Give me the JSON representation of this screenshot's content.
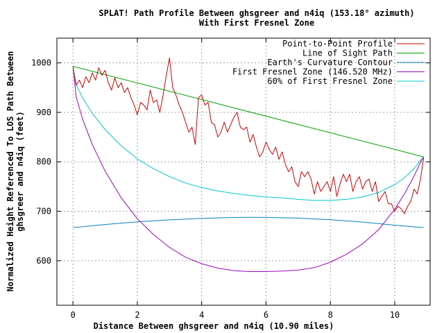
{
  "chart_data": {
    "type": "line",
    "title_lines": [
      "SPLAT! Path Profile Between ghsgreer and n4iq (153.18° azimuth)",
      "With First Fresnel Zone"
    ],
    "xlabel": "Distance Between ghsgreer and n4iq (10.90 miles)",
    "ylabel_lines": [
      "Normalized Height Referenced To LOS Path Between",
      "ghsgreer and n4iq (feet)"
    ],
    "xlim": [
      -0.5,
      11.1
    ],
    "ylim": [
      510,
      1050
    ],
    "x_ticks": [
      0,
      2,
      4,
      6,
      8,
      10
    ],
    "y_ticks": [
      600,
      700,
      800,
      900,
      1000
    ],
    "x_tick_labels": [
      "0",
      "2",
      "4",
      "6",
      "8",
      "10"
    ],
    "y_tick_labels": [
      "600",
      "700",
      "800",
      "900",
      "1000"
    ],
    "grid": true,
    "legend_position": "top-right",
    "series": [
      {
        "name": "Point-to-Point Profile",
        "color": "#cc0000",
        "x": [
          0.0,
          0.05,
          0.1,
          0.2,
          0.3,
          0.4,
          0.5,
          0.6,
          0.7,
          0.8,
          0.9,
          1.0,
          1.1,
          1.2,
          1.3,
          1.4,
          1.5,
          1.6,
          1.7,
          1.8,
          1.9,
          2.0,
          2.1,
          2.2,
          2.3,
          2.4,
          2.5,
          2.6,
          2.7,
          2.8,
          2.9,
          3.0,
          3.1,
          3.2,
          3.3,
          3.4,
          3.5,
          3.6,
          3.7,
          3.8,
          3.9,
          4.0,
          4.1,
          4.2,
          4.3,
          4.4,
          4.5,
          4.6,
          4.7,
          4.8,
          4.9,
          5.0,
          5.1,
          5.2,
          5.3,
          5.4,
          5.5,
          5.6,
          5.7,
          5.8,
          5.9,
          6.0,
          6.1,
          6.2,
          6.3,
          6.4,
          6.5,
          6.6,
          6.7,
          6.8,
          6.9,
          7.0,
          7.1,
          7.2,
          7.3,
          7.4,
          7.5,
          7.6,
          7.7,
          7.8,
          7.9,
          8.0,
          8.1,
          8.2,
          8.3,
          8.4,
          8.5,
          8.6,
          8.7,
          8.8,
          8.9,
          9.0,
          9.1,
          9.2,
          9.3,
          9.4,
          9.5,
          9.6,
          9.7,
          9.8,
          9.9,
          10.0,
          10.1,
          10.2,
          10.3,
          10.4,
          10.5,
          10.6,
          10.7,
          10.8,
          10.9
        ],
        "values": [
          992,
          970,
          955,
          965,
          950,
          972,
          960,
          980,
          965,
          990,
          975,
          985,
          960,
          945,
          970,
          950,
          960,
          940,
          950,
          930,
          915,
          895,
          920,
          915,
          905,
          945,
          920,
          925,
          900,
          935,
          975,
          1010,
          950,
          935,
          915,
          900,
          880,
          860,
          870,
          835,
          930,
          935,
          915,
          920,
          880,
          875,
          850,
          860,
          880,
          860,
          875,
          890,
          900,
          870,
          865,
          870,
          840,
          855,
          830,
          810,
          820,
          840,
          825,
          815,
          830,
          805,
          820,
          795,
          780,
          790,
          760,
          750,
          780,
          770,
          780,
          765,
          735,
          760,
          740,
          750,
          760,
          740,
          770,
          730,
          755,
          775,
          760,
          775,
          740,
          760,
          770,
          745,
          760,
          765,
          740,
          760,
          720,
          730,
          740,
          715,
          715,
          700,
          710,
          705,
          695,
          710,
          720,
          745,
          735,
          765,
          808
        ]
      },
      {
        "name": "Line of Sight Path",
        "color": "#00a000",
        "x": [
          0.0,
          10.9
        ],
        "values": [
          993,
          810
        ]
      },
      {
        "name": "Earth's Curvature Contour",
        "color": "#0080c0",
        "x": [
          0.0,
          1.0,
          2.0,
          3.0,
          4.0,
          5.0,
          5.45,
          6.0,
          7.0,
          8.0,
          9.0,
          10.0,
          10.9
        ],
        "values": [
          667,
          673.3,
          678.6,
          682.7,
          685.6,
          687.4,
          687.7,
          687.6,
          686.1,
          682.9,
          678.2,
          671.8,
          667
        ]
      },
      {
        "name": "First Fresnel Zone (146.520 MHz)",
        "color": "#a000c0",
        "x": [
          0.0,
          0.1,
          0.3,
          0.6,
          1.0,
          1.5,
          2.0,
          2.5,
          3.0,
          3.5,
          4.0,
          4.5,
          5.0,
          5.5,
          6.0,
          6.5,
          7.0,
          7.5,
          8.0,
          8.5,
          9.0,
          9.5,
          10.0,
          10.3,
          10.6,
          10.8,
          10.9
        ],
        "values": [
          993,
          931,
          886,
          835,
          781,
          727,
          685,
          653,
          627,
          607,
          594,
          585,
          580,
          578,
          578,
          579,
          581,
          586,
          597,
          613,
          634,
          663,
          704,
          735,
          771,
          799,
          810
        ]
      },
      {
        "name": "60% of First Fresnel Zone",
        "color": "#00c8d0",
        "x": [
          0.0,
          0.1,
          0.3,
          0.6,
          1.0,
          1.5,
          2.0,
          2.5,
          3.0,
          3.5,
          4.0,
          4.5,
          5.0,
          5.5,
          6.0,
          6.5,
          7.0,
          7.5,
          8.0,
          8.5,
          9.0,
          9.5,
          10.0,
          10.3,
          10.6,
          10.8,
          10.9
        ],
        "values": [
          993,
          956,
          929,
          898,
          865,
          832,
          806,
          786,
          770,
          757,
          748,
          741,
          736,
          732,
          729,
          727,
          724,
          722,
          722,
          724,
          729,
          738,
          754,
          768,
          786,
          803,
          810
        ]
      }
    ]
  }
}
